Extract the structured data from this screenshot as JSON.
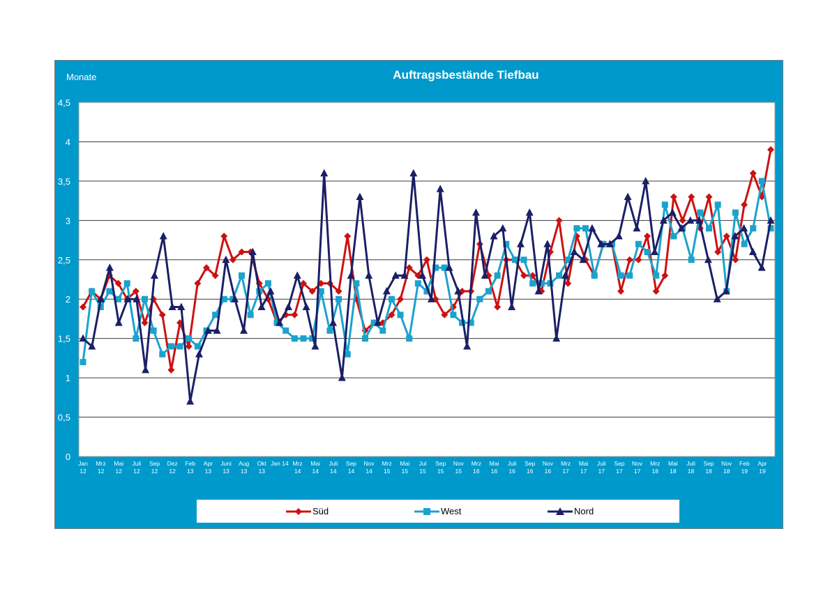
{
  "chart_data": {
    "type": "line",
    "title": "Auftragsbestände Tiefbau",
    "ylabel": "Monate",
    "xlabel": "",
    "ylim": [
      0,
      4.5
    ],
    "ytick_labels": [
      "0",
      "0,5",
      "1",
      "1,5",
      "2",
      "2,5",
      "3",
      "3,5",
      "4",
      "4,5"
    ],
    "ytick_values": [
      0,
      0.5,
      1,
      1.5,
      2,
      2.5,
      3,
      3.5,
      4,
      4.5
    ],
    "grid": true,
    "legend_position": "bottom",
    "x_tick_labels": [
      [
        "Jan",
        "12"
      ],
      [
        "Mrz",
        "12"
      ],
      [
        "Mai",
        "12"
      ],
      [
        "Juli",
        "12"
      ],
      [
        "Sep",
        "12"
      ],
      [
        "Dez",
        "12"
      ],
      [
        "Feb",
        "13"
      ],
      [
        "Apr",
        "13"
      ],
      [
        "Juni",
        "13"
      ],
      [
        "Aug",
        "13"
      ],
      [
        "Okt",
        "13"
      ],
      [
        "Jan 14",
        ""
      ],
      [
        "Mrz",
        "14"
      ],
      [
        "Mai",
        "14"
      ],
      [
        "Juli",
        "14"
      ],
      [
        "Sep",
        "14"
      ],
      [
        "Nov",
        "14"
      ],
      [
        "Mrz",
        "15"
      ],
      [
        "Mai",
        "15"
      ],
      [
        "Jul",
        "15"
      ],
      [
        "Sep",
        "15"
      ],
      [
        "Nov",
        "15"
      ],
      [
        "Mrz",
        "16"
      ],
      [
        "Mai",
        "16"
      ],
      [
        "Juli",
        "16"
      ],
      [
        "Sep",
        "16"
      ],
      [
        "Nov",
        "16"
      ],
      [
        "Mrz",
        "17"
      ],
      [
        "Mai",
        "17"
      ],
      [
        "Juli",
        "17"
      ],
      [
        "Sep",
        "17"
      ],
      [
        "Nov",
        "17"
      ],
      [
        "Mrz",
        "18"
      ],
      [
        "Mai",
        "18"
      ],
      [
        "Juli",
        "18"
      ],
      [
        "Sep",
        "18"
      ],
      [
        "Nov",
        "18"
      ],
      [
        "Feb",
        "19"
      ],
      [
        "Apr",
        "19"
      ]
    ],
    "series": [
      {
        "name": "Süd",
        "color": "#cc1111",
        "marker": "diamond",
        "values": [
          1.9,
          2.1,
          2.0,
          2.3,
          2.2,
          2.0,
          2.1,
          1.7,
          2.0,
          1.8,
          1.1,
          1.7,
          1.4,
          2.2,
          2.4,
          2.3,
          2.8,
          2.5,
          2.6,
          2.6,
          2.2,
          2.0,
          1.7,
          1.8,
          1.8,
          2.2,
          2.1,
          2.2,
          2.2,
          2.1,
          2.8,
          2.0,
          1.6,
          1.7,
          1.7,
          1.8,
          2.0,
          2.4,
          2.3,
          2.5,
          2.0,
          1.8,
          1.9,
          2.1,
          2.1,
          2.7,
          2.3,
          1.9,
          2.5,
          2.5,
          2.3,
          2.3,
          2.1,
          2.6,
          3.0,
          2.2,
          2.8,
          2.5,
          2.3,
          2.7,
          2.7,
          2.1,
          2.5,
          2.5,
          2.8,
          2.1,
          2.3,
          3.3,
          3.0,
          3.3,
          2.9,
          3.3,
          2.6,
          2.8,
          2.5,
          3.2,
          3.6,
          3.3,
          3.9
        ]
      },
      {
        "name": "West",
        "color": "#1aa3cc",
        "marker": "square",
        "values": [
          1.2,
          2.1,
          1.9,
          2.1,
          2.0,
          2.2,
          1.5,
          2.0,
          1.6,
          1.3,
          1.4,
          1.4,
          1.5,
          1.4,
          1.6,
          1.8,
          2.0,
          2.0,
          2.3,
          1.8,
          2.1,
          2.2,
          1.7,
          1.6,
          1.5,
          1.5,
          1.5,
          2.1,
          1.6,
          2.0,
          1.3,
          2.2,
          1.5,
          1.7,
          1.6,
          2.0,
          1.8,
          1.5,
          2.2,
          2.1,
          2.4,
          2.4,
          1.8,
          1.7,
          1.7,
          2.0,
          2.1,
          2.3,
          2.7,
          2.5,
          2.5,
          2.2,
          2.2,
          2.2,
          2.3,
          2.5,
          2.9,
          2.9,
          2.3,
          2.7,
          2.7,
          2.3,
          2.3,
          2.7,
          2.6,
          2.3,
          3.2,
          2.8,
          2.9,
          2.5,
          3.1,
          2.9,
          3.2,
          2.1,
          3.1,
          2.7,
          2.9,
          3.5,
          2.9
        ]
      },
      {
        "name": "Nord",
        "color": "#1a1f66",
        "marker": "triangle",
        "values": [
          1.5,
          1.4,
          2.0,
          2.4,
          1.7,
          2.0,
          2.0,
          1.1,
          2.3,
          2.8,
          1.9,
          1.9,
          0.7,
          1.3,
          1.6,
          1.6,
          2.5,
          2.0,
          1.6,
          2.6,
          1.9,
          2.1,
          1.7,
          1.9,
          2.3,
          1.9,
          1.4,
          3.6,
          1.7,
          1.0,
          2.3,
          3.3,
          2.3,
          1.7,
          2.1,
          2.3,
          2.3,
          3.6,
          2.3,
          2.0,
          3.4,
          2.4,
          2.1,
          1.4,
          3.1,
          2.3,
          2.8,
          2.9,
          1.9,
          2.7,
          3.1,
          2.1,
          2.7,
          1.5,
          2.3,
          2.6,
          2.5,
          2.9,
          2.7,
          2.7,
          2.8,
          3.3,
          2.9,
          3.5,
          2.6,
          3.0,
          3.1,
          2.9,
          3.0,
          3.0,
          2.5,
          2.0,
          2.1,
          2.8,
          2.9,
          2.6,
          2.4,
          3.0
        ]
      }
    ]
  }
}
